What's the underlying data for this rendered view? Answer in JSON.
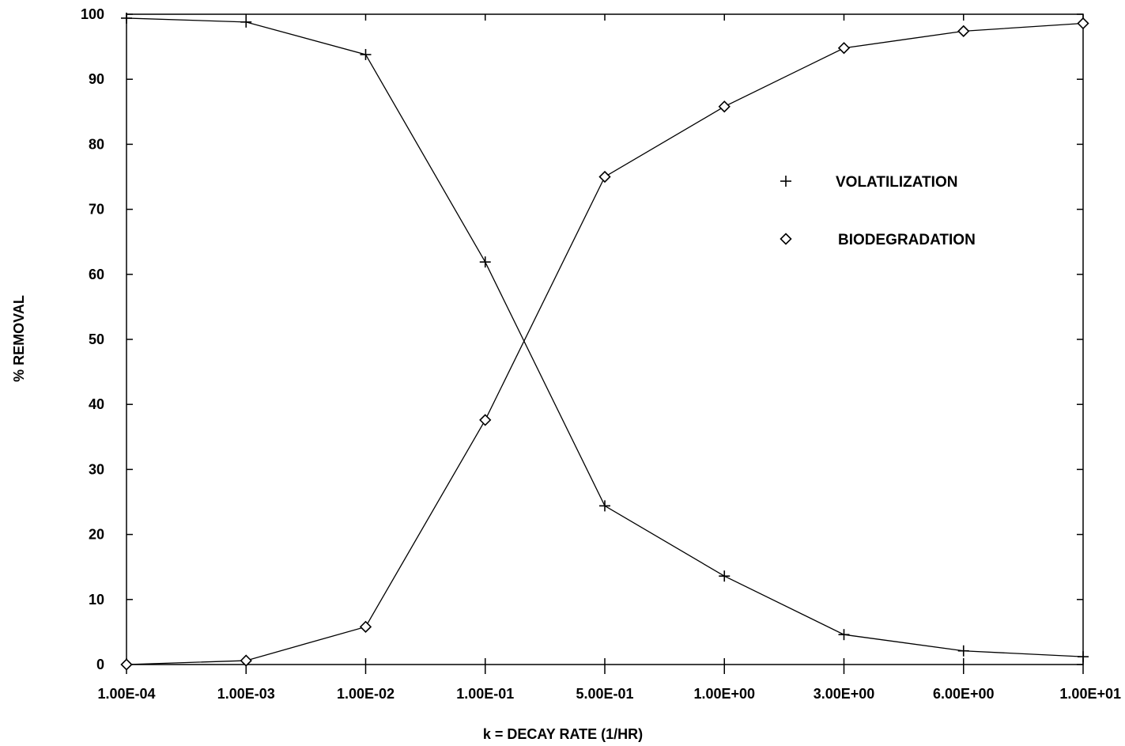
{
  "chart_data": {
    "type": "line",
    "title": "",
    "xlabel": "k = DECAY RATE (1/HR)",
    "ylabel": "% REMOVAL",
    "x": [
      "1.00E-04",
      "1.00E-03",
      "1.00E-02",
      "1.00E-01",
      "5.00E-01",
      "1.00E+00",
      "3.00E+00",
      "6.00E+00",
      "1.00E+01"
    ],
    "x_scale": "categorical",
    "ylim": [
      0,
      100
    ],
    "yticks": [
      0,
      10,
      20,
      30,
      40,
      50,
      60,
      70,
      80,
      90,
      100
    ],
    "grid": false,
    "legend_position": "upper-right",
    "series": [
      {
        "name": "VOLATILIZATION",
        "marker": "plus",
        "values": [
          99.4,
          98.8,
          93.8,
          61.9,
          24.4,
          13.6,
          4.6,
          2.1,
          1.2
        ]
      },
      {
        "name": "BIODEGRADATION",
        "marker": "diamond",
        "values": [
          0.0,
          0.6,
          5.8,
          37.6,
          75.0,
          85.8,
          94.8,
          97.4,
          98.6
        ]
      }
    ]
  }
}
